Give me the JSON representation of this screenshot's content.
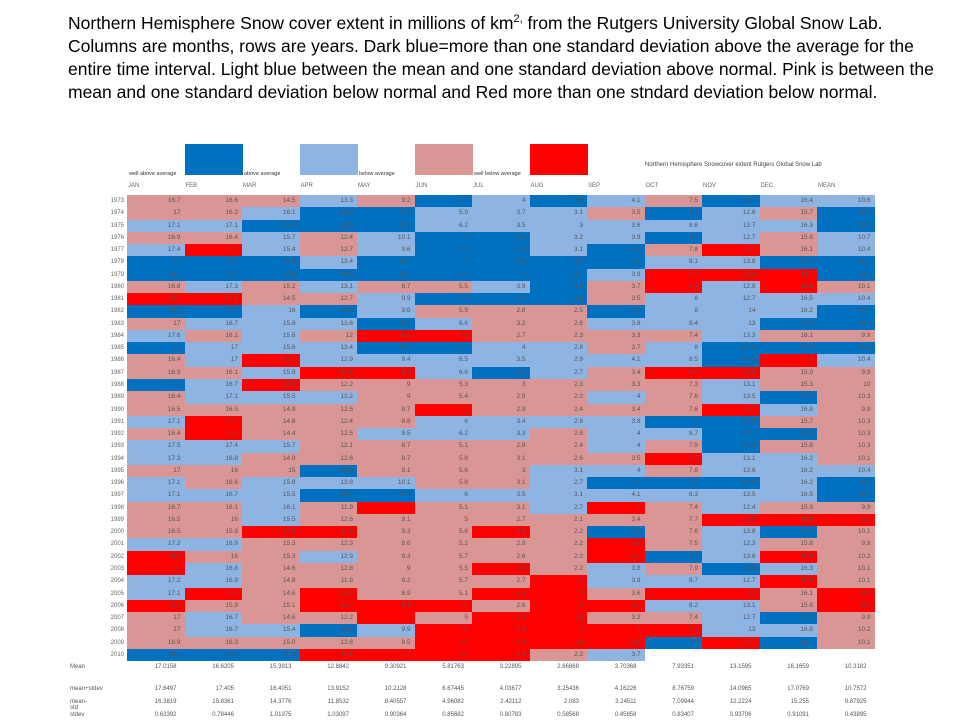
{
  "title_parts": {
    "a": "Northern Hemisphere Snow cover extent in millions of km",
    "sup": "2,",
    "b": " from the Rutgers University Global Snow Lab.  Columns are months, rows are years.  Dark blue=more than one standard deviation above the average for the entire time interval.  Light blue between the mean and one standard deviation above normal.  Pink is between the mean and one standard deviation below normal and Red more than one stndard deviation below normal."
  },
  "colors": {
    "d": "#0070c0",
    "l": "#8eb4e3",
    "p": "#da9694",
    "r": "#ff0000"
  },
  "chart_data": {
    "type": "table",
    "title": "Northern Hemisphere Snowcover extent Rutgers Global Snow Lab",
    "legend": [
      {
        "label": "well above average",
        "color": "d"
      },
      {
        "label": "above average",
        "color": "l"
      },
      {
        "label": "below average",
        "color": "p"
      },
      {
        "label": "well below average",
        "color": "r"
      }
    ],
    "columns": [
      "JAN",
      "FEB",
      "MAR",
      "APR",
      "MAY",
      "JUN",
      "JUL",
      "AUG",
      "SEP",
      "OCT",
      "NOV",
      "DEC",
      "MEAN"
    ],
    "rows": [
      {
        "year": "1973",
        "v": [
          "16.7",
          "16.6",
          "14.5",
          "13.3",
          "9.2",
          "7.7",
          "4",
          "3.5",
          "4.1",
          "7.5",
          "14.7",
          "16.4",
          "10.6"
        ]
      },
      {
        "year": "1974",
        "v": [
          "17",
          "16.2",
          "16.1",
          "14.3",
          "11.6",
          "5.9",
          "3.7",
          "3.1",
          "3.5",
          "8.7",
          "12.6",
          "15.7",
          "10.9"
        ]
      },
      {
        "year": "1975",
        "v": [
          "17.1",
          "17.1",
          "16.6",
          "13.5",
          "10.3",
          "6.2",
          "3.5",
          "3",
          "3.6",
          "8.6",
          "13.7",
          "16.3",
          "10.9"
        ]
      },
      {
        "year": "1976",
        "v": [
          "16.9",
          "16.4",
          "15.7",
          "12.4",
          "10.1",
          "7",
          "4.6",
          "3.2",
          "3.9",
          "8.9",
          "12.7",
          "15.6",
          "10.7"
        ]
      },
      {
        "year": "1977",
        "v": [
          "17.4",
          "15.7",
          "15.4",
          "12.7",
          "9.6",
          "7.1",
          "4.3",
          "3.1",
          "4.2",
          "7.8",
          "11.7",
          "16.1",
          "10.4"
        ]
      },
      {
        "year": "1978",
        "v": [
          "18",
          "18.0",
          "16.3",
          "13.4",
          "10.6",
          "7",
          "4.6",
          "4.3",
          "4.3",
          "8.1",
          "13.8",
          "17.4",
          "11.2"
        ]
      },
      {
        "year": "1979",
        "v": [
          "18.2",
          "18.5",
          "16.6",
          "14.5",
          "10.5",
          "6.7",
          "5",
          "3.7",
          "3.9",
          "6.3",
          "11.4",
          "14.7",
          "10.6"
        ]
      },
      {
        "year": "1980",
        "v": [
          "16.8",
          "17.3",
          "15.2",
          "13.1",
          "8.7",
          "5.5",
          "3.9",
          "3.5",
          "3.7",
          "6.4",
          "12.8",
          "13.8",
          "10.1"
        ]
      },
      {
        "year": "1981",
        "v": [
          "15.8",
          "15.4",
          "14.5",
          "12.7",
          "9.9",
          "6.9",
          "4.4",
          "3.9",
          "3.5",
          "8",
          "12.7",
          "16.5",
          "10.4"
        ]
      },
      {
        "year": "1982",
        "v": [
          "18.2",
          "17.6",
          "16",
          "14.3",
          "9.6",
          "5.9",
          "2.8",
          "2.5",
          "4.2",
          "8",
          "14",
          "16.2",
          "10.6"
        ]
      },
      {
        "year": "1983",
        "v": [
          "17",
          "16.7",
          "15.8",
          "13.6",
          "10.9",
          "6.6",
          "3.2",
          "2.6",
          "3.8",
          "8.4",
          "13",
          "17.6",
          "10.6"
        ]
      },
      {
        "year": "1984",
        "v": [
          "17.6",
          "16.1",
          "15.6",
          "12",
          "8.2",
          "4.8",
          "2.7",
          "2.3",
          "3.3",
          "7.4",
          "13.3",
          "16.1",
          "9.9"
        ]
      },
      {
        "year": "1985",
        "v": [
          "18",
          "17",
          "15.6",
          "13.4",
          "10.6",
          "7.2",
          "4",
          "2.8",
          "3.7",
          "8",
          "15.2",
          "17.2",
          "11.1"
        ]
      },
      {
        "year": "1986",
        "v": [
          "16.4",
          "17",
          "14.1",
          "12.9",
          "9.4",
          "6.5",
          "3.5",
          "2.9",
          "4.1",
          "8.5",
          "14.3",
          "14",
          "10.4"
        ]
      },
      {
        "year": "1987",
        "v": [
          "16.9",
          "16.1",
          "15.8",
          "11.6",
          "8.1",
          "6.6",
          "4.5",
          "2.7",
          "3.4",
          "6.5",
          "11.6",
          "15.9",
          "9.9"
        ]
      },
      {
        "year": "1988",
        "v": [
          "18",
          "16.7",
          "14.3",
          "12.2",
          "9",
          "5.3",
          "3",
          "2.3",
          "3.3",
          "7.3",
          "13.1",
          "15.3",
          "10"
        ]
      },
      {
        "year": "1989",
        "v": [
          "16.4",
          "17.1",
          "15.5",
          "13.2",
          "9",
          "5.4",
          "2.9",
          "2.3",
          "4",
          "7.6",
          "13.5",
          "17.3",
          "10.3"
        ]
      },
      {
        "year": "1990",
        "v": [
          "16.5",
          "16.5",
          "14.9",
          "12.5",
          "8.7",
          "4.9",
          "2.9",
          "2.4",
          "3.4",
          "7.6",
          "11.7",
          "16.8",
          "9.9"
        ]
      },
      {
        "year": "1991",
        "v": [
          "17.1",
          "15.7",
          "14.6",
          "12.4",
          "8.8",
          "6",
          "3.4",
          "2.8",
          "3.8",
          "9",
          "14.5",
          "15.7",
          "10.3"
        ]
      },
      {
        "year": "1992",
        "v": [
          "16.4",
          "15.8",
          "14.4",
          "12.5",
          "9.5",
          "6.2",
          "3.3",
          "2.6",
          "4",
          "8.7",
          "14.1",
          "17.6",
          "10.3"
        ]
      },
      {
        "year": "1993",
        "v": [
          "17.5",
          "17.4",
          "15.7",
          "12.1",
          "8.7",
          "5.1",
          "2.8",
          "2.4",
          "4",
          "7.9",
          "14.2",
          "15.8",
          "10.3"
        ]
      },
      {
        "year": "1994",
        "v": [
          "17.3",
          "16.8",
          "14.9",
          "12.6",
          "8.7",
          "5.8",
          "3.1",
          "2.6",
          "3.5",
          "6.9",
          "13.1",
          "16.2",
          "10.1"
        ]
      },
      {
        "year": "1995",
        "v": [
          "17",
          "16",
          "15",
          "14.5",
          "9.1",
          "5.6",
          "3",
          "3.1",
          "4",
          "7.8",
          "13.6",
          "16.2",
          "10.4"
        ]
      },
      {
        "year": "1996",
        "v": [
          "17.1",
          "16.6",
          "15.8",
          "13.8",
          "10.1",
          "5.8",
          "3.1",
          "2.7",
          "4.3",
          "9.3",
          "14.9",
          "16.2",
          "10.7"
        ]
      },
      {
        "year": "1997",
        "v": [
          "17.1",
          "16.7",
          "15.5",
          "14.7",
          "10.9",
          "6",
          "3.5",
          "3.1",
          "4.1",
          "8.3",
          "13.5",
          "16.5",
          "10.6"
        ]
      },
      {
        "year": "1998",
        "v": [
          "16.7",
          "16.1",
          "16.1",
          "11.9",
          "8",
          "5.1",
          "3.1",
          "2.7",
          "3",
          "7.4",
          "12.4",
          "15.9",
          "9.9"
        ]
      },
      {
        "year": "1999",
        "v": [
          "16.5",
          "16",
          "15.5",
          "12.6",
          "9.1",
          "5",
          "2.7",
          "2.1",
          "3.4",
          "7.7",
          "11.8",
          "14.9",
          "9.7"
        ]
      },
      {
        "year": "2000",
        "v": [
          "16.5",
          "15.9",
          "13.8",
          "11.6",
          "9.3",
          "5.8",
          "2.6",
          "2.2",
          "4.4",
          "7.6",
          "13.8",
          "17.3",
          "10.1"
        ]
      },
      {
        "year": "2001",
        "v": [
          "17.2",
          "16.9",
          "15.3",
          "12.3",
          "8.6",
          "5.2",
          "2.9",
          "2.2",
          "3.1",
          "7.5",
          "12.3",
          "15.8",
          "9.9"
        ]
      },
      {
        "year": "2002",
        "v": [
          "16.1",
          "16",
          "15.3",
          "12.9",
          "9.3",
          "5.7",
          "2.6",
          "2.3",
          "3.2",
          "9.6",
          "13.6",
          "15.0",
          "10.2"
        ]
      },
      {
        "year": "2003",
        "v": [
          "16",
          "16.8",
          "14.6",
          "12.8",
          "9",
          "5.5",
          "2.6",
          "2.2",
          "3.8",
          "7.9",
          "14.5",
          "16.3",
          "10.1"
        ]
      },
      {
        "year": "2004",
        "v": [
          "17.2",
          "16.9",
          "14.8",
          "11.9",
          "9.2",
          "5.7",
          "2.7",
          "2",
          "3.9",
          "8.7",
          "12.7",
          "15.0",
          "10.1"
        ]
      },
      {
        "year": "2005",
        "v": [
          "17.1",
          "15.6",
          "14.6",
          "11.5",
          "8.9",
          "5.1",
          "2.4",
          "2",
          "3.6",
          "7",
          "12",
          "16.1",
          "9.7"
        ]
      },
      {
        "year": "2006",
        "v": [
          "15.7",
          "15.9",
          "15.1",
          "11.4",
          "8.1",
          "4.8",
          "2.6",
          "2",
          "3.2",
          "8.2",
          "13.1",
          "15.6",
          "9.7"
        ]
      },
      {
        "year": "2007",
        "v": [
          "17",
          "16.7",
          "14.6",
          "12.2",
          "8",
          "5",
          "2.3",
          "1.9",
          "3.3",
          "7.4",
          "12.7",
          "17.2",
          "9.9"
        ]
      },
      {
        "year": "2008",
        "v": [
          "17",
          "16.7",
          "15.4",
          "14.4",
          "9.9",
          "4.8",
          "2.3",
          "2",
          "3",
          "6.9",
          "13",
          "16.8",
          "10.2"
        ]
      },
      {
        "year": "2009",
        "v": [
          "16.9",
          "16.3",
          "15.0",
          "12.8",
          "8.5",
          "4.8",
          "2.3",
          "1.9",
          "3.1",
          "9.4",
          "11.7",
          "18.1",
          "10.1"
        ]
      },
      {
        "year": "2010",
        "v": [
          "18.2",
          "18.6",
          "16.5",
          "11.6",
          "7.8",
          "4.3",
          "2.4",
          "2.3",
          "3.7",
          "",
          "",
          "",
          ""
        ]
      }
    ],
    "cell_colors": [
      "ppplpdldlpdll",
      "pplddlllpdlpd",
      "lldddllllllld",
      "pplplddlldlpl",
      "lrlplddldprpl",
      "dddldddddlldd",
      "ddddddddlrrrd",
      "plplppldprlrp",
      "rrppldddpllll",
      "ddldlpppdllld",
      "pllldlppllldd",
      "lplprrpppplpp",
      "dlllddllplddd",
      "plrllllllldrl",
      "pplrrldlprrpp",
      "dlrppppppplpp",
      "plllpppplpldp",
      "ppppprpppprlp",
      "lrpppllllddpp",
      "prpplllpllddp",
      "lllppppplpdpp",
      "llppppppprllp",
      "pppdpppllplll",
      "lplllppldddld",
      "lllddllllllld",
      "pplprpplrplpp",
      "pplppppppprrr",
      "pprrpprpdpldp",
      "llpppppprplpp",
      "rpplpppprdlrp",
      "rlpppprplpdlp",
      "llppppprlllrp",
      "lrprpprrprrpr",
      "rpprrrprrllpr",
      "plpprprrppldp",
      "plldlrrrrrllp",
      "ppppprrrrdrdp",
      "dddrrrrpl"
    ],
    "summary": [
      {
        "label": "Mean",
        "v": [
          "17.0158",
          "16.6205",
          "15.3913",
          "12.8842",
          "9.30921",
          "5.81763",
          "3.22895",
          "2.66868",
          "3.70368",
          "7.93351",
          "13.1595",
          "16.1659",
          "10.3182"
        ]
      },
      {
        "label": "mean+stdev",
        "v": [
          "17.6497",
          "17.405",
          "16.4051",
          "13.9152",
          "10.2128",
          "6.67445",
          "4.03677",
          "3.25436",
          "4.16226",
          "8.76759",
          "14.0965",
          "17.0769",
          "10.7572"
        ]
      },
      {
        "label": "mean-std",
        "v": [
          "16.3819",
          "15.8361",
          "14.3776",
          "11.8532",
          "8.40557",
          "4.96082",
          "2.42112",
          "2.083",
          "3.24511",
          "7.09944",
          "12.2224",
          "15.255",
          "9.87925"
        ]
      },
      {
        "label": "stdev",
        "v": [
          "0.63392",
          "0.78446",
          "1.01375",
          "1.03097",
          "0.90364",
          "0.85682",
          "0.80783",
          "0.58568",
          "0.45858",
          "0.83407",
          "0.93706",
          "0.91091",
          "0.43895"
        ]
      }
    ]
  }
}
